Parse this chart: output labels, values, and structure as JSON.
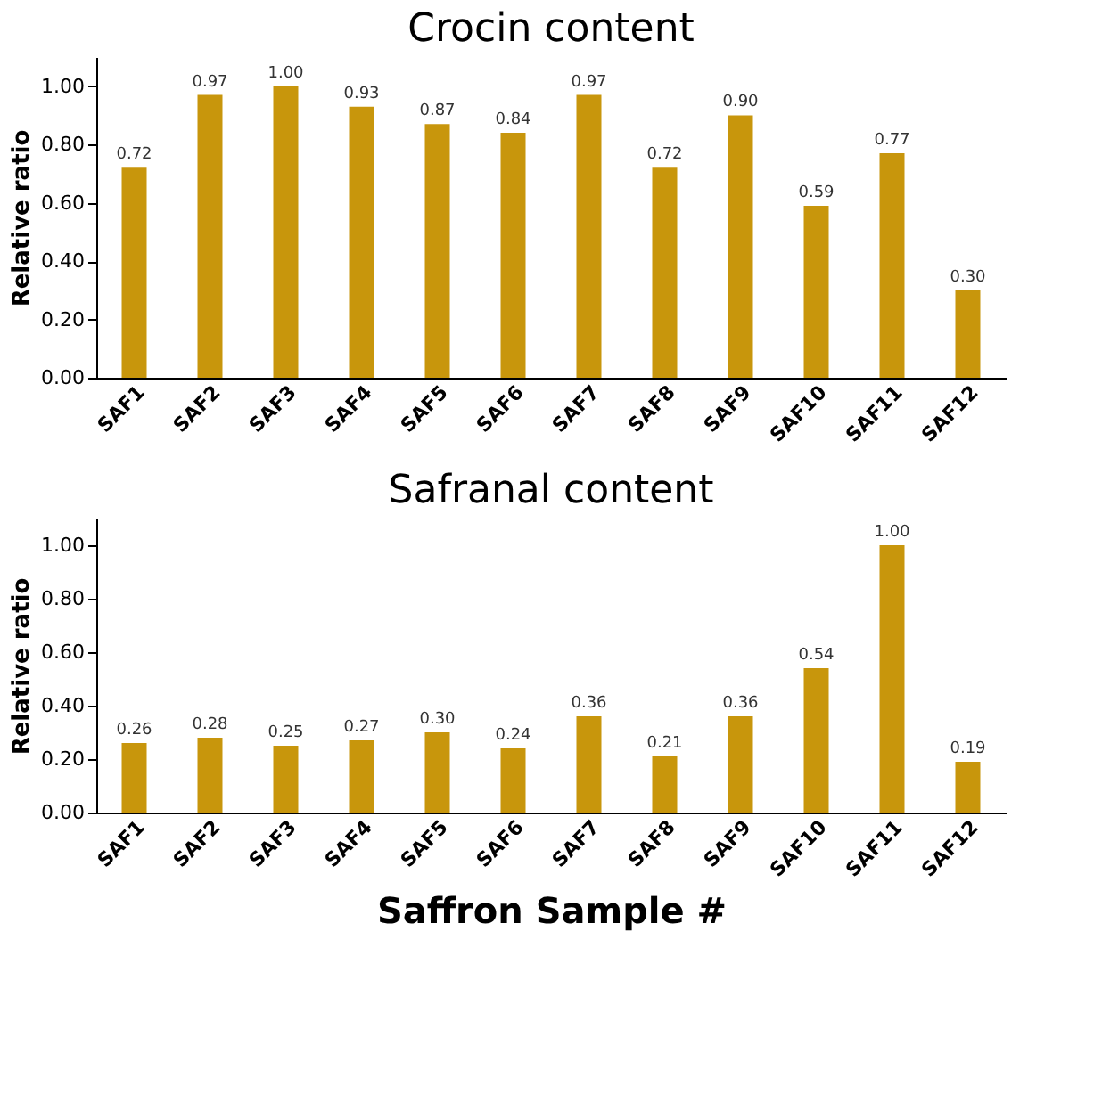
{
  "chart_data": [
    {
      "type": "bar",
      "title": "Crocin content",
      "ylabel": "Relative ratio",
      "categories": [
        "SAF1",
        "SAF2",
        "SAF3",
        "SAF4",
        "SAF5",
        "SAF6",
        "SAF7",
        "SAF8",
        "SAF9",
        "SAF10",
        "SAF11",
        "SAF12"
      ],
      "values": [
        0.72,
        0.97,
        1.0,
        0.93,
        0.87,
        0.84,
        0.97,
        0.72,
        0.9,
        0.59,
        0.77,
        0.3
      ],
      "value_labels": [
        "0.72",
        "0.97",
        "1.00",
        "0.93",
        "0.87",
        "0.84",
        "0.97",
        "0.72",
        "0.90",
        "0.59",
        "0.77",
        "0.30"
      ],
      "color": "#c8960c",
      "ylim": [
        0,
        1.1
      ],
      "yticks": [
        {
          "value": 0,
          "label": "0.00"
        },
        {
          "value": 0.2,
          "label": "0.20"
        },
        {
          "value": 0.4,
          "label": "0.40"
        },
        {
          "value": 0.6,
          "label": "0.60"
        },
        {
          "value": 0.8,
          "label": "0.80"
        },
        {
          "value": 1.0,
          "label": "1.00"
        }
      ],
      "grid": false
    },
    {
      "type": "bar",
      "title": "Safranal content",
      "ylabel": "Relative ratio",
      "xlabel": "Saffron Sample #",
      "categories": [
        "SAF1",
        "SAF2",
        "SAF3",
        "SAF4",
        "SAF5",
        "SAF6",
        "SAF7",
        "SAF8",
        "SAF9",
        "SAF10",
        "SAF11",
        "SAF12"
      ],
      "values": [
        0.26,
        0.28,
        0.25,
        0.27,
        0.3,
        0.24,
        0.36,
        0.21,
        0.36,
        0.54,
        1.0,
        0.19
      ],
      "value_labels": [
        "0.26",
        "0.28",
        "0.25",
        "0.27",
        "0.30",
        "0.24",
        "0.36",
        "0.21",
        "0.36",
        "0.54",
        "1.00",
        "0.19"
      ],
      "color": "#c8960c",
      "ylim": [
        0,
        1.1
      ],
      "yticks": [
        {
          "value": 0,
          "label": "0.00"
        },
        {
          "value": 0.2,
          "label": "0.20"
        },
        {
          "value": 0.4,
          "label": "0.40"
        },
        {
          "value": 0.6,
          "label": "0.60"
        },
        {
          "value": 0.8,
          "label": "0.80"
        },
        {
          "value": 1.0,
          "label": "1.00"
        }
      ],
      "grid": false
    }
  ]
}
